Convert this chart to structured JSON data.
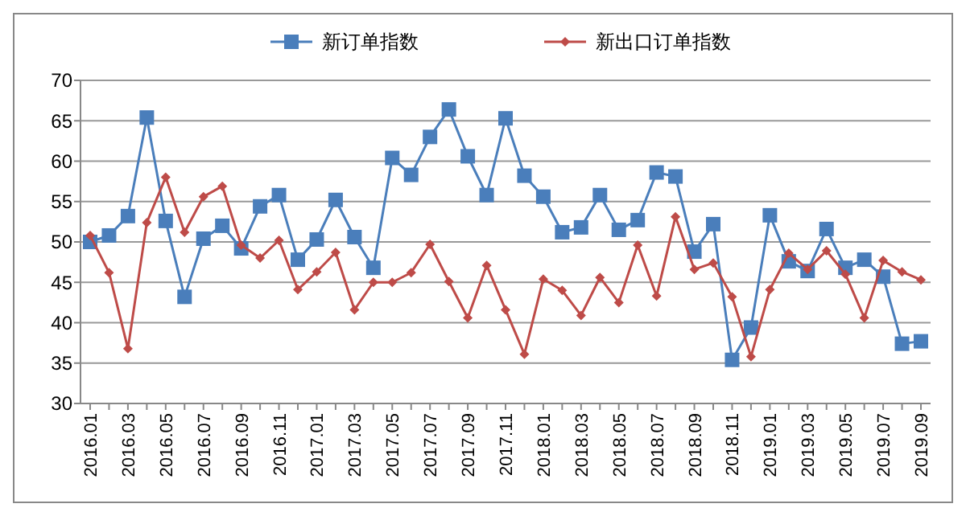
{
  "chart_data": {
    "type": "line",
    "categories": [
      "2016.01",
      null,
      "2016.03",
      null,
      "2016.05",
      null,
      "2016.07",
      null,
      "2016.09",
      null,
      "2016.11",
      null,
      "2017.01",
      null,
      "2017.03",
      null,
      "2017.05",
      null,
      "2017.07",
      null,
      "2017.09",
      null,
      "2017.11",
      null,
      "2018.01",
      null,
      "2018.03",
      null,
      "2018.05",
      null,
      "2018.07",
      null,
      "2018.09",
      null,
      "2018.11",
      null,
      "2019.01",
      null,
      "2019.03",
      null,
      "2019.05",
      null,
      "2019.07",
      null,
      "2019.09"
    ],
    "series": [
      {
        "name": "新订单指数",
        "color": "#4a7ebb",
        "marker": "square",
        "values": [
          50,
          50.8,
          53.2,
          65.4,
          52.6,
          43.2,
          50.4,
          52,
          49.2,
          54.4,
          55.8,
          47.8,
          50.3,
          55.2,
          50.6,
          46.8,
          60.4,
          58.3,
          63,
          66.4,
          60.6,
          55.8,
          65.3,
          58.2,
          55.6,
          51.2,
          51.8,
          55.8,
          51.5,
          52.7,
          58.6,
          58.1,
          48.8,
          52.2,
          35.4,
          39.4,
          53.3,
          47.6,
          46.4,
          51.6,
          46.8,
          47.8,
          45.7,
          37.4,
          37.7
        ]
      },
      {
        "name": "新出口订单指数",
        "color": "#be4b48",
        "marker": "diamond",
        "values": [
          50.8,
          46.2,
          36.8,
          52.4,
          58,
          51.2,
          55.6,
          56.9,
          49.6,
          48,
          50.2,
          44.1,
          46.3,
          48.7,
          41.6,
          45,
          45,
          46.2,
          49.7,
          45.1,
          40.6,
          47.1,
          41.6,
          36.1,
          45.4,
          44,
          40.9,
          45.6,
          42.5,
          49.6,
          43.3,
          53.1,
          46.6,
          47.4,
          43.2,
          35.8,
          44.1,
          48.6,
          46.6,
          48.9,
          46,
          40.6,
          47.7,
          46.3,
          45.3
        ]
      }
    ],
    "ylim": [
      30,
      70
    ],
    "yticks": [
      30,
      35,
      40,
      45,
      50,
      55,
      60,
      65,
      70
    ],
    "grid": "y",
    "legend": "top"
  }
}
